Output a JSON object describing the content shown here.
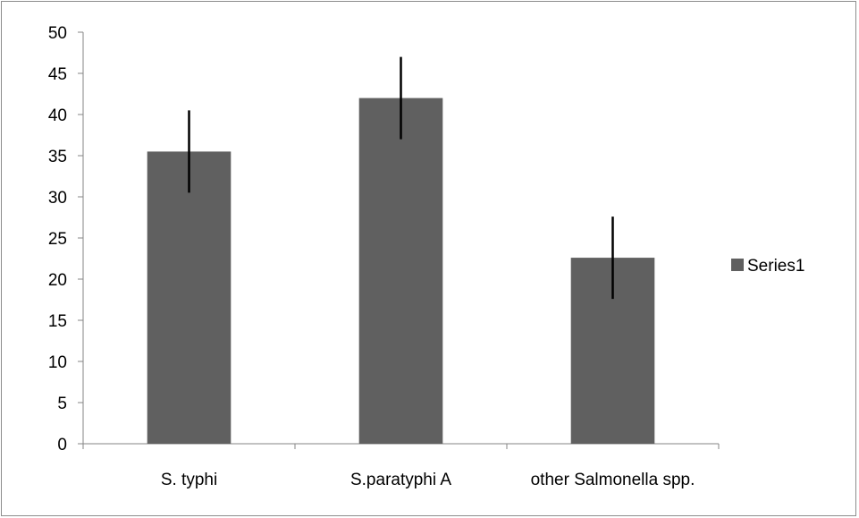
{
  "chart_data": {
    "type": "bar",
    "categories": [
      "S. typhi",
      "S.paratyphi A",
      "other Salmonella spp."
    ],
    "series": [
      {
        "name": "Series1",
        "values": [
          35.5,
          42,
          22.6
        ],
        "error": [
          5,
          5,
          5
        ],
        "color": "#606060"
      }
    ],
    "ylim": [
      0,
      50
    ],
    "yticks": [
      0,
      5,
      10,
      15,
      20,
      25,
      30,
      35,
      40,
      45,
      50
    ],
    "title": "",
    "xlabel": "",
    "ylabel": "",
    "legend_position": "right",
    "grid": false
  }
}
